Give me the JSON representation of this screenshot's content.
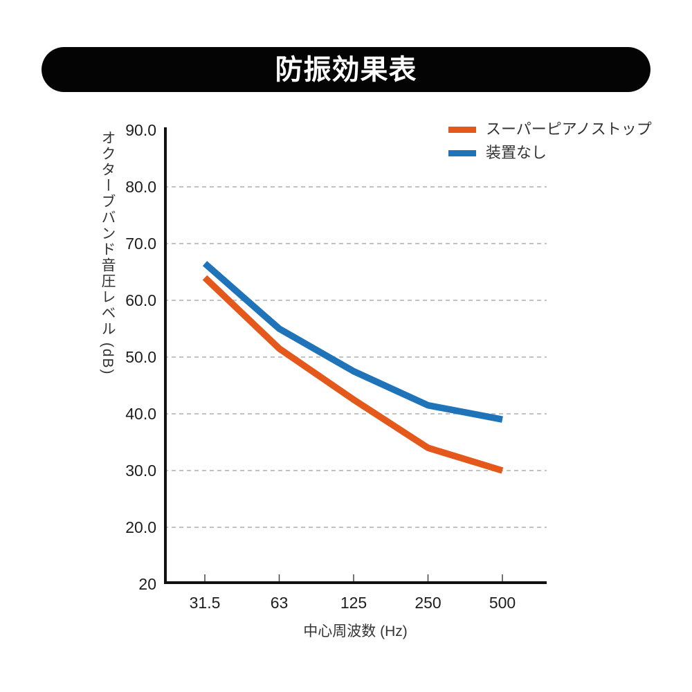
{
  "banner": {
    "title": "防振効果表",
    "bg_color": "#040404",
    "text_color": "#ffffff"
  },
  "chart_data": {
    "type": "line",
    "title": "防振効果表",
    "categories": [
      "31.5",
      "63",
      "125",
      "250",
      "500"
    ],
    "series": [
      {
        "name": "スーパーピアノストップ",
        "color": "#e4581b",
        "values": [
          64.0,
          51.5,
          42.5,
          34.0,
          30.0
        ]
      },
      {
        "name": "装置なし",
        "color": "#1e73b9",
        "values": [
          66.5,
          55.0,
          47.5,
          41.5,
          39.0
        ]
      }
    ],
    "xlabel": "中心周波数 (Hz)",
    "ylabel": "オクターブバンド音圧レベル (dB)",
    "y_axis": {
      "ticks": [
        {
          "label": "90.0",
          "value": 90
        },
        {
          "label": "80.0",
          "value": 80
        },
        {
          "label": "70.0",
          "value": 70
        },
        {
          "label": "60.0",
          "value": 60
        },
        {
          "label": "50.0",
          "value": 50
        },
        {
          "label": "40.0",
          "value": 40
        },
        {
          "label": "30.0",
          "value": 30
        },
        {
          "label": "20.0",
          "value": 20
        }
      ],
      "bottom_label": "20",
      "grid_values": [
        80,
        70,
        60,
        50,
        40,
        30,
        20
      ]
    },
    "ylim_labeled": [
      20,
      90
    ],
    "grid": "horizontal-dashed",
    "legend_position": "top-right",
    "colors": {
      "axis": "#111111",
      "gridline": "#adadad",
      "tick_mark": "#444444",
      "tick_text": "#1d1d1d",
      "title_text": "#333333"
    }
  }
}
